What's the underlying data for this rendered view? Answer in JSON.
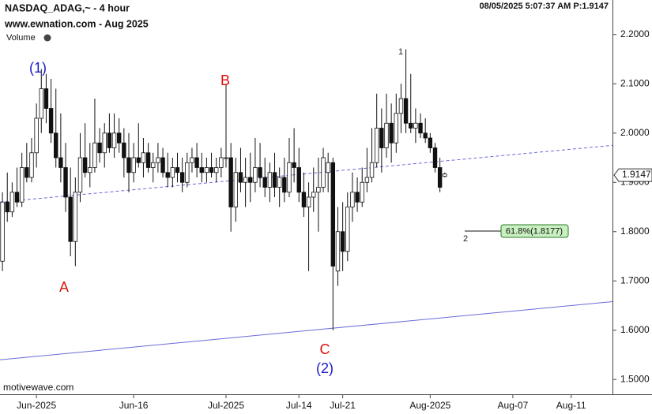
{
  "chart_data": {
    "type": "candlestick",
    "title": "NASDAQ_ADAG,~ - 4 hour",
    "subtitle": "www.ewnation.com  - Aug 2025",
    "indicator_label": "Volume",
    "timestamp": "08/05/2025 5:07:37 AM  P:1.9147",
    "footer": "motivewave.com",
    "open": [
      1.74,
      1.86,
      1.84,
      1.88,
      1.86,
      1.93,
      1.91,
      1.96,
      2.03,
      2.09,
      2.05,
      2.0,
      1.95,
      1.93,
      1.87,
      1.78,
      1.88,
      1.95,
      1.92,
      1.93,
      1.98,
      1.96,
      2.0,
      1.97,
      2.0,
      1.98,
      1.95,
      1.92,
      1.95,
      1.94,
      1.96,
      1.93,
      1.94,
      1.95,
      1.92,
      1.91,
      1.93,
      1.92,
      1.9,
      1.94,
      1.95,
      1.93,
      1.92,
      1.93,
      1.92,
      1.93,
      1.95,
      1.95,
      1.85,
      1.92,
      1.9,
      1.91,
      1.9,
      1.93,
      1.91,
      1.89,
      1.92,
      1.89,
      1.91,
      1.88,
      1.94,
      1.93,
      1.88,
      1.85,
      1.87,
      1.88,
      1.89,
      1.92,
      1.94,
      1.72,
      1.8,
      1.76,
      1.85,
      1.88,
      1.86,
      1.9,
      1.91,
      1.94,
      2.01,
      1.97,
      2.02,
      1.98,
      2.04,
      2.07,
      2.02,
      2.01,
      2.02,
      2.0,
      1.99,
      1.97,
      1.93,
      1.912
    ],
    "high": [
      1.88,
      1.92,
      1.9,
      1.93,
      1.96,
      1.98,
      1.99,
      2.06,
      2.13,
      2.12,
      2.11,
      2.09,
      2.04,
      1.98,
      1.93,
      1.91,
      2.0,
      2.02,
      1.98,
      2.07,
      2.01,
      2.02,
      2.04,
      2.04,
      2.03,
      2.01,
      2.0,
      1.98,
      2.02,
      1.99,
      1.98,
      1.96,
      1.98,
      1.97,
      1.96,
      1.95,
      1.96,
      1.95,
      1.96,
      1.97,
      1.98,
      1.96,
      1.95,
      1.96,
      1.95,
      1.97,
      2.1,
      1.98,
      1.95,
      1.97,
      1.95,
      1.96,
      1.99,
      1.98,
      1.95,
      1.94,
      1.96,
      1.93,
      1.95,
      1.99,
      2.01,
      1.97,
      1.92,
      1.9,
      1.93,
      1.95,
      1.97,
      1.96,
      1.95,
      1.85,
      1.86,
      1.88,
      1.92,
      1.91,
      1.93,
      1.97,
      2.01,
      2.08,
      2.05,
      2.08,
      2.06,
      2.08,
      2.1,
      2.17,
      2.12,
      2.05,
      2.04,
      2.03,
      2.0,
      1.98,
      1.95,
      1.92
    ],
    "low": [
      1.72,
      1.82,
      1.83,
      1.85,
      1.85,
      1.9,
      1.9,
      1.93,
      2.0,
      2.02,
      1.98,
      1.93,
      1.9,
      1.84,
      1.75,
      1.73,
      1.86,
      1.91,
      1.89,
      1.92,
      1.94,
      1.93,
      1.96,
      1.95,
      1.96,
      1.91,
      1.88,
      1.9,
      1.93,
      1.91,
      1.92,
      1.9,
      1.92,
      1.91,
      1.89,
      1.89,
      1.9,
      1.88,
      1.89,
      1.92,
      1.91,
      1.9,
      1.9,
      1.91,
      1.9,
      1.91,
      1.93,
      1.8,
      1.82,
      1.88,
      1.85,
      1.86,
      1.88,
      1.89,
      1.87,
      1.86,
      1.87,
      1.85,
      1.86,
      1.87,
      1.9,
      1.86,
      1.83,
      1.72,
      1.84,
      1.8,
      1.88,
      1.88,
      1.6,
      1.69,
      1.72,
      1.74,
      1.82,
      1.84,
      1.85,
      1.88,
      1.9,
      1.93,
      1.92,
      1.95,
      1.94,
      1.96,
      2.0,
      2.0,
      2.0,
      1.98,
      1.99,
      1.98,
      1.96,
      1.92,
      1.88,
      1.91
    ],
    "close": [
      1.86,
      1.84,
      1.88,
      1.86,
      1.93,
      1.91,
      1.96,
      2.03,
      2.09,
      2.05,
      2.0,
      1.95,
      1.93,
      1.87,
      1.78,
      1.88,
      1.95,
      1.92,
      1.93,
      1.98,
      1.96,
      2.0,
      1.97,
      2.0,
      1.98,
      1.95,
      1.92,
      1.95,
      1.94,
      1.96,
      1.93,
      1.94,
      1.95,
      1.92,
      1.91,
      1.93,
      1.92,
      1.9,
      1.94,
      1.95,
      1.93,
      1.92,
      1.93,
      1.92,
      1.93,
      1.95,
      1.95,
      1.85,
      1.92,
      1.9,
      1.91,
      1.9,
      1.93,
      1.91,
      1.89,
      1.92,
      1.89,
      1.91,
      1.88,
      1.94,
      1.93,
      1.88,
      1.85,
      1.87,
      1.88,
      1.89,
      1.95,
      1.94,
      1.73,
      1.8,
      1.76,
      1.85,
      1.88,
      1.86,
      1.9,
      1.91,
      1.94,
      2.01,
      1.97,
      2.02,
      1.98,
      2.04,
      2.07,
      2.02,
      2.01,
      2.02,
      2.0,
      1.99,
      1.97,
      1.93,
      1.89,
      1.917
    ],
    "last_price": 1.9147,
    "xlim": [
      -0.5,
      125.5
    ],
    "xticks": [
      {
        "value": 7,
        "label": "Jun-2025"
      },
      {
        "value": 27,
        "label": "Jun-16"
      },
      {
        "value": 46,
        "label": "Jul-2025"
      },
      {
        "value": 61,
        "label": "Jul-14"
      },
      {
        "value": 70,
        "label": "Jul-21"
      },
      {
        "value": 88,
        "label": "Aug-2025"
      },
      {
        "value": 105,
        "label": "Aug-07"
      },
      {
        "value": 117,
        "label": "Aug-11"
      }
    ],
    "ylim": [
      1.47,
      2.27
    ],
    "yticks": [
      {
        "value": 2.2,
        "label": "2.2000"
      },
      {
        "value": 2.1,
        "label": "2.1000"
      },
      {
        "value": 2.0,
        "label": "2.0000"
      },
      {
        "value": 1.9,
        "label": "1.9000"
      },
      {
        "value": 1.8,
        "label": "1.8000"
      },
      {
        "value": 1.7,
        "label": "1.7000"
      },
      {
        "value": 1.6,
        "label": "1.6000"
      },
      {
        "value": 1.5,
        "label": "1.5000"
      }
    ],
    "trendlines": [
      {
        "x": [
          -0.5,
          125.5
        ],
        "y": [
          1.86,
          1.975
        ],
        "color": "#6a6ad8",
        "dashed": true
      },
      {
        "x": [
          -0.5,
          125.5
        ],
        "y": [
          1.54,
          1.658
        ],
        "color": "#6a6ad8",
        "dashed": false
      }
    ],
    "wave_labels": [
      "(1)",
      "A",
      "B",
      "C",
      "(2)",
      "1",
      "2"
    ],
    "wave_colors": [
      "#1a1acc",
      "#e01010",
      "#e01010",
      "#e01010",
      "#1a1acc",
      "#222222",
      "#222222"
    ],
    "fib_label": "61.8%(1.8177)"
  }
}
